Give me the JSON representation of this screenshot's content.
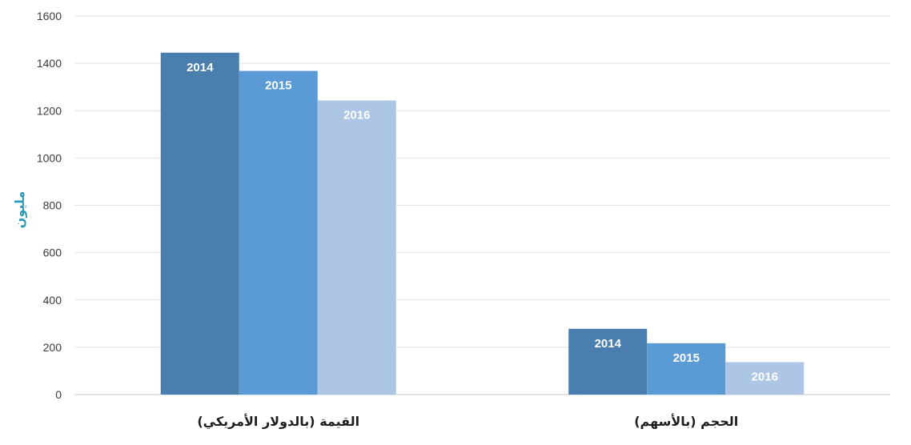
{
  "chart_data": {
    "type": "bar",
    "categories": [
      "القيمة (بالدولار الأمريكي)",
      "الحجم (بالأسهم)"
    ],
    "series": [
      {
        "name": "2014",
        "values": [
          1445,
          278
        ],
        "color": "#4a7eae"
      },
      {
        "name": "2015",
        "values": [
          1368,
          217
        ],
        "color": "#5b9bd5"
      },
      {
        "name": "2016",
        "values": [
          1243,
          137
        ],
        "color": "#adc6e5"
      }
    ],
    "ylabel": "مليون",
    "ylabel_color": "#2e9ab8",
    "ylim": [
      0,
      1600
    ],
    "yticks": [
      "0",
      "200",
      "400",
      "600",
      "800",
      "1000",
      "1200",
      "1400",
      "1600"
    ],
    "grid": true,
    "legend": "none",
    "data_labels": "series-name-inside-bar"
  }
}
